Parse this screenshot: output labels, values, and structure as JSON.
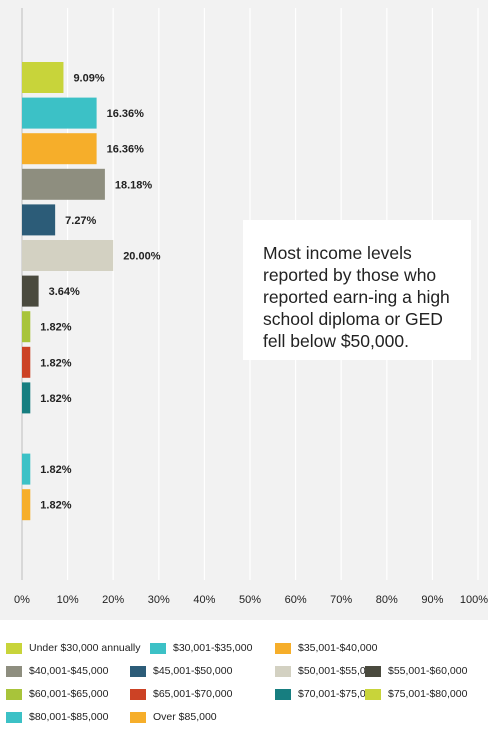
{
  "chart_data": {
    "type": "bar",
    "orientation": "horizontal",
    "categories": [
      "Under $30,000 annually",
      "$30,001-$35,000",
      "$35,001-$40,000",
      "$40,001-$45,000",
      "$45,001-$50,000",
      "$50,001-$55,000",
      "$55,001-$60,000",
      "$60,001-$65,000",
      "$65,001-$70,000",
      "$70,001-$75,000",
      "$75,001-$80,000",
      "$80,001-$85,000",
      "Over $85,000"
    ],
    "values": [
      9.09,
      16.36,
      16.36,
      18.18,
      7.27,
      20.0,
      3.64,
      1.82,
      1.82,
      1.82,
      0,
      1.82,
      1.82
    ],
    "value_labels": [
      "9.09%",
      "16.36%",
      "16.36%",
      "18.18%",
      "7.27%",
      "20.00%",
      "3.64%",
      "1.82%",
      "1.82%",
      "1.82%",
      "",
      "1.82%",
      "1.82%"
    ],
    "colors": [
      "#c8d43a",
      "#3cc1c6",
      "#f6ae2a",
      "#8e8e7f",
      "#2c5c78",
      "#d3d1c2",
      "#4a4a3e",
      "#a8c43a",
      "#cc4225",
      "#177e80",
      "#c8d43a",
      "#3cc1c6",
      "#f6ae2a"
    ],
    "xlim": [
      0,
      100
    ],
    "x_ticks": [
      "0%",
      "10%",
      "20%",
      "30%",
      "40%",
      "50%",
      "60%",
      "70%",
      "80%",
      "90%",
      "100%"
    ],
    "grid": true,
    "legend_position": "bottom",
    "title": "",
    "xlabel": "",
    "ylabel": ""
  },
  "callout_text": "Most income levels reported by those who reported earn-ing a high school diploma or GED fell below $50,000."
}
